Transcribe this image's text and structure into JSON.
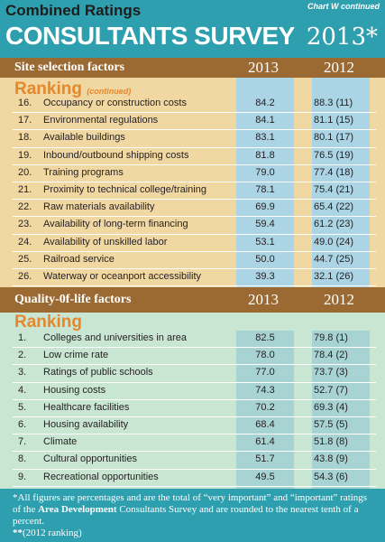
{
  "header": {
    "top_title": "Combined Ratings",
    "chart_note": "Chart W continued",
    "survey_title": "CONSULTANTS SURVEY",
    "survey_year": "2013*"
  },
  "site_selection": {
    "label": "Site selection factors",
    "year_a": "2013",
    "year_b": "2012",
    "ranking_heading": "Ranking",
    "ranking_sub": "(continued)",
    "rows": [
      {
        "num": "16.",
        "label": "Occupancy or construction costs",
        "v2013": "84.2",
        "v2012": "88.3 (11)"
      },
      {
        "num": "17.",
        "label": "Environmental regulations",
        "v2013": "84.1",
        "v2012": "81.1 (15)"
      },
      {
        "num": "18.",
        "label": "Available buildings",
        "v2013": "83.1",
        "v2012": "80.1 (17)"
      },
      {
        "num": "19.",
        "label": "Inbound/outbound shipping costs",
        "v2013": "81.8",
        "v2012": "76.5 (19)"
      },
      {
        "num": "20.",
        "label": "Training programs",
        "v2013": "79.0",
        "v2012": "77.4 (18)"
      },
      {
        "num": "21.",
        "label": "Proximity to technical college/training",
        "v2013": "78.1",
        "v2012": "75.4 (21)"
      },
      {
        "num": "22.",
        "label": "Raw materials availability",
        "v2013": "69.9",
        "v2012": "65.4 (22)"
      },
      {
        "num": "23.",
        "label": "Availability of long-term financing",
        "v2013": "59.4",
        "v2012": "61.2 (23)"
      },
      {
        "num": "24.",
        "label": "Availability of unskilled labor",
        "v2013": "53.1",
        "v2012": "49.0 (24)"
      },
      {
        "num": "25.",
        "label": "Railroad service",
        "v2013": "50.0",
        "v2012": "44.7 (25)"
      },
      {
        "num": "26.",
        "label": "Waterway or oceanport accessibility",
        "v2013": "39.3",
        "v2012": "32.1 (26)"
      }
    ]
  },
  "quality_of_life": {
    "label": "Quality-0f-life factors",
    "year_a": "2013",
    "year_b": "2012",
    "ranking_heading": "Ranking",
    "rows": [
      {
        "num": "1.",
        "label": "Colleges and universities in area",
        "v2013": "82.5",
        "v2012": "79.8 (1)"
      },
      {
        "num": "2.",
        "label": "Low crime rate",
        "v2013": "78.0",
        "v2012": "78.4 (2)"
      },
      {
        "num": "3.",
        "label": "Ratings of public schools",
        "v2013": "77.0",
        "v2012": "73.7 (3)"
      },
      {
        "num": "4.",
        "label": "Housing costs",
        "v2013": "74.3",
        "v2012": "52.7 (7)"
      },
      {
        "num": "5.",
        "label": "Healthcare facilities",
        "v2013": "70.2",
        "v2012": "69.3 (4)"
      },
      {
        "num": "6.",
        "label": "Housing availability",
        "v2013": "68.4",
        "v2012": "57.5 (5)"
      },
      {
        "num": "7.",
        "label": "Climate",
        "v2013": "61.4",
        "v2012": "51.8 (8)"
      },
      {
        "num": "8.",
        "label": "Cultural opportunities",
        "v2013": "51.7",
        "v2012": "43.8 (9)"
      },
      {
        "num": "9.",
        "label": "Recreational opportunities",
        "v2013": "49.5",
        "v2012": "54.3 (6)"
      }
    ]
  },
  "footnote": {
    "line1_pre": "*All figures are percentages and are the total of “very important” and “important” ratings of the ",
    "line1_bold": "Area Development",
    "line1_post": " Consultants Survey and are rounded to the nearest tenth of a percent.",
    "line2_bold": "**",
    "line2_post": "(2012 ranking)"
  },
  "colors": {
    "teal": "#2e9fae",
    "brown": "#9b6a33",
    "orange": "#e6872c",
    "tan_panel": "#f1d8a2",
    "green_panel": "#c9e6d3",
    "blue_band": "#abd4e4"
  }
}
